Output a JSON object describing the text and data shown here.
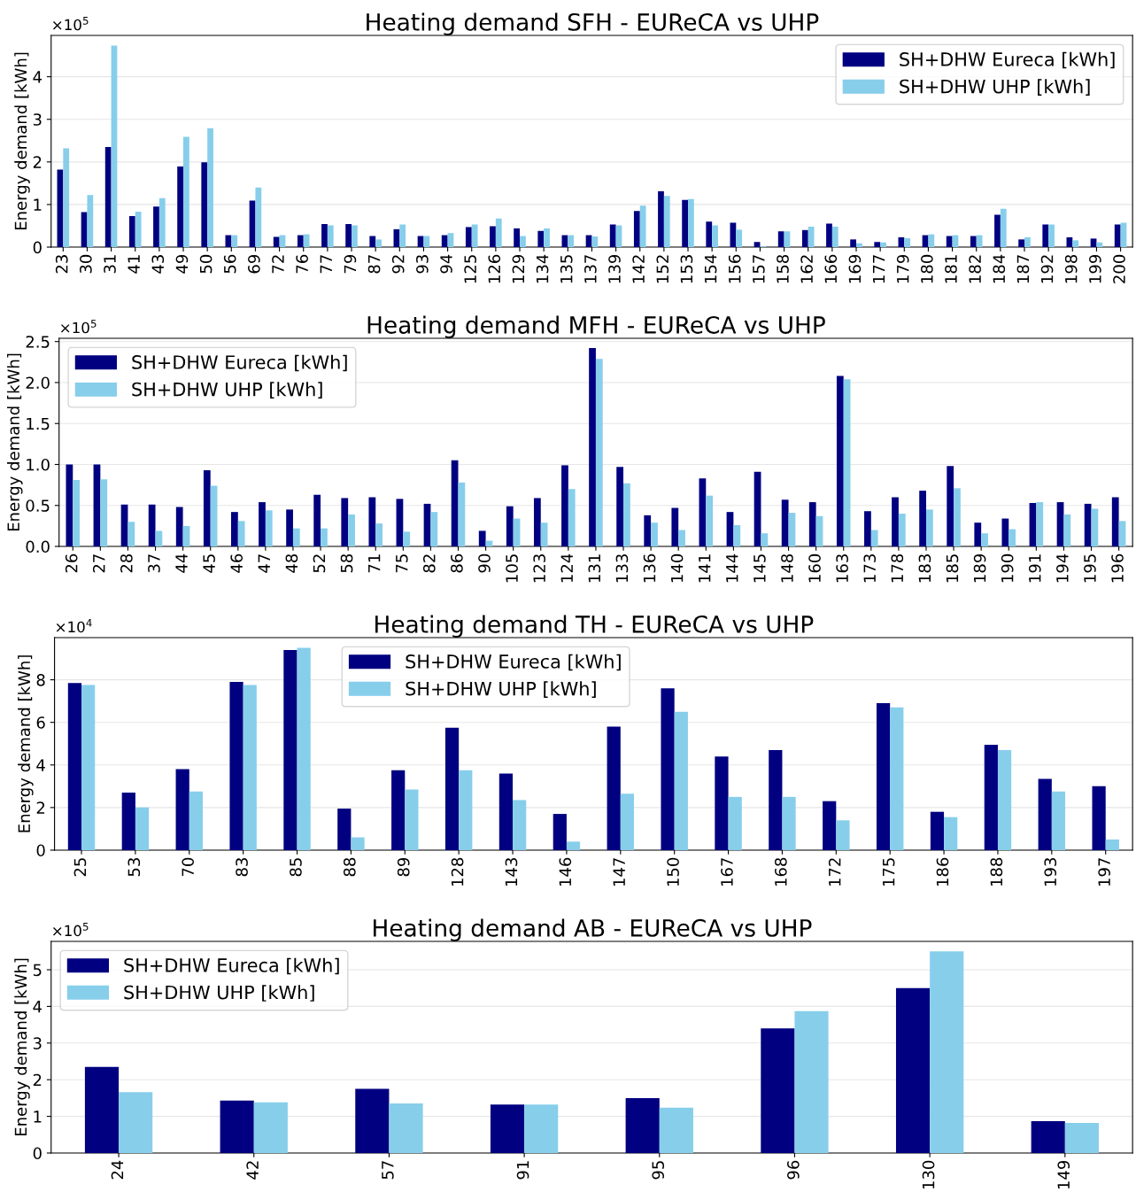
{
  "chart_data": [
    {
      "type": "bar",
      "title": "Heating demand SFH - EUReCA vs UHP",
      "ylabel": "Energy demand [kWh]",
      "annotations": [
        "×10$^{5}$"
      ],
      "categories": [
        "23",
        "30",
        "31",
        "41",
        "43",
        "49",
        "50",
        "56",
        "69",
        "72",
        "76",
        "77",
        "79",
        "87",
        "92",
        "93",
        "94",
        "125",
        "126",
        "129",
        "134",
        "135",
        "137",
        "139",
        "142",
        "152",
        "153",
        "154",
        "156",
        "157",
        "158",
        "162",
        "166",
        "169",
        "177",
        "179",
        "180",
        "181",
        "182",
        "184",
        "187",
        "192",
        "198",
        "199",
        "200"
      ],
      "series": [
        {
          "name": "SH+DHW Eureca [kWh]",
          "color": "#000080",
          "values": [
            1.82,
            0.82,
            2.35,
            0.73,
            0.95,
            1.89,
            1.99,
            0.28,
            1.09,
            0.24,
            0.28,
            0.54,
            0.54,
            0.26,
            0.42,
            0.26,
            0.28,
            0.47,
            0.49,
            0.44,
            0.38,
            0.28,
            0.28,
            0.53,
            0.85,
            1.31,
            1.11,
            0.6,
            0.57,
            0.12,
            0.37,
            0.4,
            0.55,
            0.18,
            0.12,
            0.23,
            0.28,
            0.26,
            0.26,
            0.76,
            0.18,
            0.53,
            0.23,
            0.2,
            0.53
          ]
        },
        {
          "name": "SH+DHW UHP [kWh]",
          "color": "#87ceeb",
          "values": [
            2.32,
            1.22,
            4.73,
            0.83,
            1.15,
            2.59,
            2.79,
            0.28,
            1.4,
            0.28,
            0.3,
            0.51,
            0.51,
            0.18,
            0.53,
            0.26,
            0.33,
            0.53,
            0.67,
            0.26,
            0.44,
            0.28,
            0.25,
            0.51,
            0.97,
            1.2,
            1.13,
            0.51,
            0.41,
            0.02,
            0.37,
            0.48,
            0.48,
            0.09,
            0.11,
            0.21,
            0.3,
            0.28,
            0.28,
            0.9,
            0.23,
            0.53,
            0.16,
            0.11,
            0.57
          ]
        }
      ],
      "ylim": [
        0,
        4.97
      ],
      "yticks": [
        0,
        1,
        2,
        3,
        4
      ],
      "grid": "y",
      "legend": "top right"
    },
    {
      "type": "bar",
      "title": "Heating demand MFH - EUReCA vs UHP",
      "ylabel": "Energy demand [kWh]",
      "annotations": [
        "×10$^{5}$"
      ],
      "categories": [
        "26",
        "27",
        "28",
        "37",
        "44",
        "45",
        "46",
        "47",
        "48",
        "52",
        "58",
        "71",
        "75",
        "82",
        "86",
        "90",
        "105",
        "123",
        "124",
        "131",
        "133",
        "136",
        "140",
        "141",
        "144",
        "145",
        "148",
        "160",
        "163",
        "173",
        "178",
        "183",
        "185",
        "189",
        "190",
        "191",
        "194",
        "195",
        "196"
      ],
      "series": [
        {
          "name": "SH+DHW Eureca [kWh]",
          "color": "#000080",
          "values": [
            1.0,
            1.0,
            0.51,
            0.51,
            0.48,
            0.93,
            0.42,
            0.54,
            0.45,
            0.63,
            0.59,
            0.6,
            0.58,
            0.52,
            1.05,
            0.19,
            0.49,
            0.59,
            0.99,
            2.42,
            0.97,
            0.38,
            0.47,
            0.83,
            0.42,
            0.91,
            0.57,
            0.54,
            2.08,
            0.43,
            0.6,
            0.68,
            0.98,
            0.29,
            0.34,
            0.53,
            0.54,
            0.52,
            0.6
          ]
        },
        {
          "name": "SH+DHW UHP [kWh]",
          "color": "#87ceeb",
          "values": [
            0.81,
            0.82,
            0.3,
            0.19,
            0.25,
            0.74,
            0.31,
            0.44,
            0.22,
            0.22,
            0.39,
            0.28,
            0.18,
            0.42,
            0.78,
            0.07,
            0.34,
            0.29,
            0.7,
            2.29,
            0.77,
            0.29,
            0.2,
            0.62,
            0.26,
            0.16,
            0.41,
            0.37,
            2.04,
            0.2,
            0.4,
            0.45,
            0.71,
            0.16,
            0.21,
            0.54,
            0.39,
            0.46,
            0.31
          ]
        }
      ],
      "ylim": [
        0,
        2.54
      ],
      "yticks": [
        {
          "value": 0,
          "label": "0.0"
        },
        {
          "value": 0.5,
          "label": "0.5"
        },
        {
          "value": 1.0,
          "label": "1.0"
        },
        {
          "value": 1.5,
          "label": "1.5"
        },
        {
          "value": 2.0,
          "label": "2.0"
        },
        {
          "value": 2.5,
          "label": "2.5"
        }
      ],
      "grid": "y",
      "legend": "top left"
    },
    {
      "type": "bar",
      "title": "Heating demand TH - EUReCA vs UHP",
      "ylabel": "Energy demand [kWh]",
      "annotations": [
        "×10$^{4}$"
      ],
      "categories": [
        "25",
        "53",
        "70",
        "83",
        "85",
        "88",
        "89",
        "128",
        "143",
        "146",
        "147",
        "150",
        "167",
        "168",
        "172",
        "175",
        "186",
        "188",
        "193",
        "197"
      ],
      "series": [
        {
          "name": "SH+DHW Eureca [kWh]",
          "color": "#000080",
          "values": [
            7.85,
            2.7,
            3.8,
            7.9,
            9.4,
            1.95,
            3.75,
            5.75,
            3.6,
            1.7,
            5.8,
            7.6,
            4.4,
            4.7,
            2.3,
            6.9,
            1.8,
            4.95,
            3.35,
            3.0
          ]
        },
        {
          "name": "SH+DHW UHP [kWh]",
          "color": "#87ceeb",
          "values": [
            7.75,
            2.0,
            2.75,
            7.75,
            9.5,
            0.6,
            2.85,
            3.75,
            2.35,
            0.4,
            2.65,
            6.5,
            2.5,
            2.5,
            1.4,
            6.7,
            1.55,
            4.7,
            2.75,
            0.5
          ]
        }
      ],
      "ylim": [
        0,
        9.98
      ],
      "yticks": [
        0,
        2,
        4,
        6,
        8
      ],
      "grid": "y",
      "legend": "top"
    },
    {
      "type": "bar",
      "title": "Heating demand AB - EUReCA vs UHP",
      "ylabel": "Energy demand [kWh]",
      "annotations": [
        "×10$^{5}$"
      ],
      "categories": [
        "24",
        "42",
        "57",
        "91",
        "95",
        "96",
        "130",
        "149"
      ],
      "series": [
        {
          "name": "SH+DHW Eureca [kWh]",
          "color": "#000080",
          "values": [
            2.35,
            1.43,
            1.75,
            1.32,
            1.5,
            3.4,
            4.5,
            0.87
          ]
        },
        {
          "name": "SH+DHW UHP [kWh]",
          "color": "#87ceeb",
          "values": [
            1.66,
            1.38,
            1.35,
            1.32,
            1.24,
            3.87,
            5.5,
            0.82
          ]
        }
      ],
      "ylim": [
        0,
        5.775
      ],
      "yticks": [
        0,
        1,
        2,
        3,
        4,
        5
      ],
      "grid": "y",
      "legend": "top left"
    }
  ]
}
